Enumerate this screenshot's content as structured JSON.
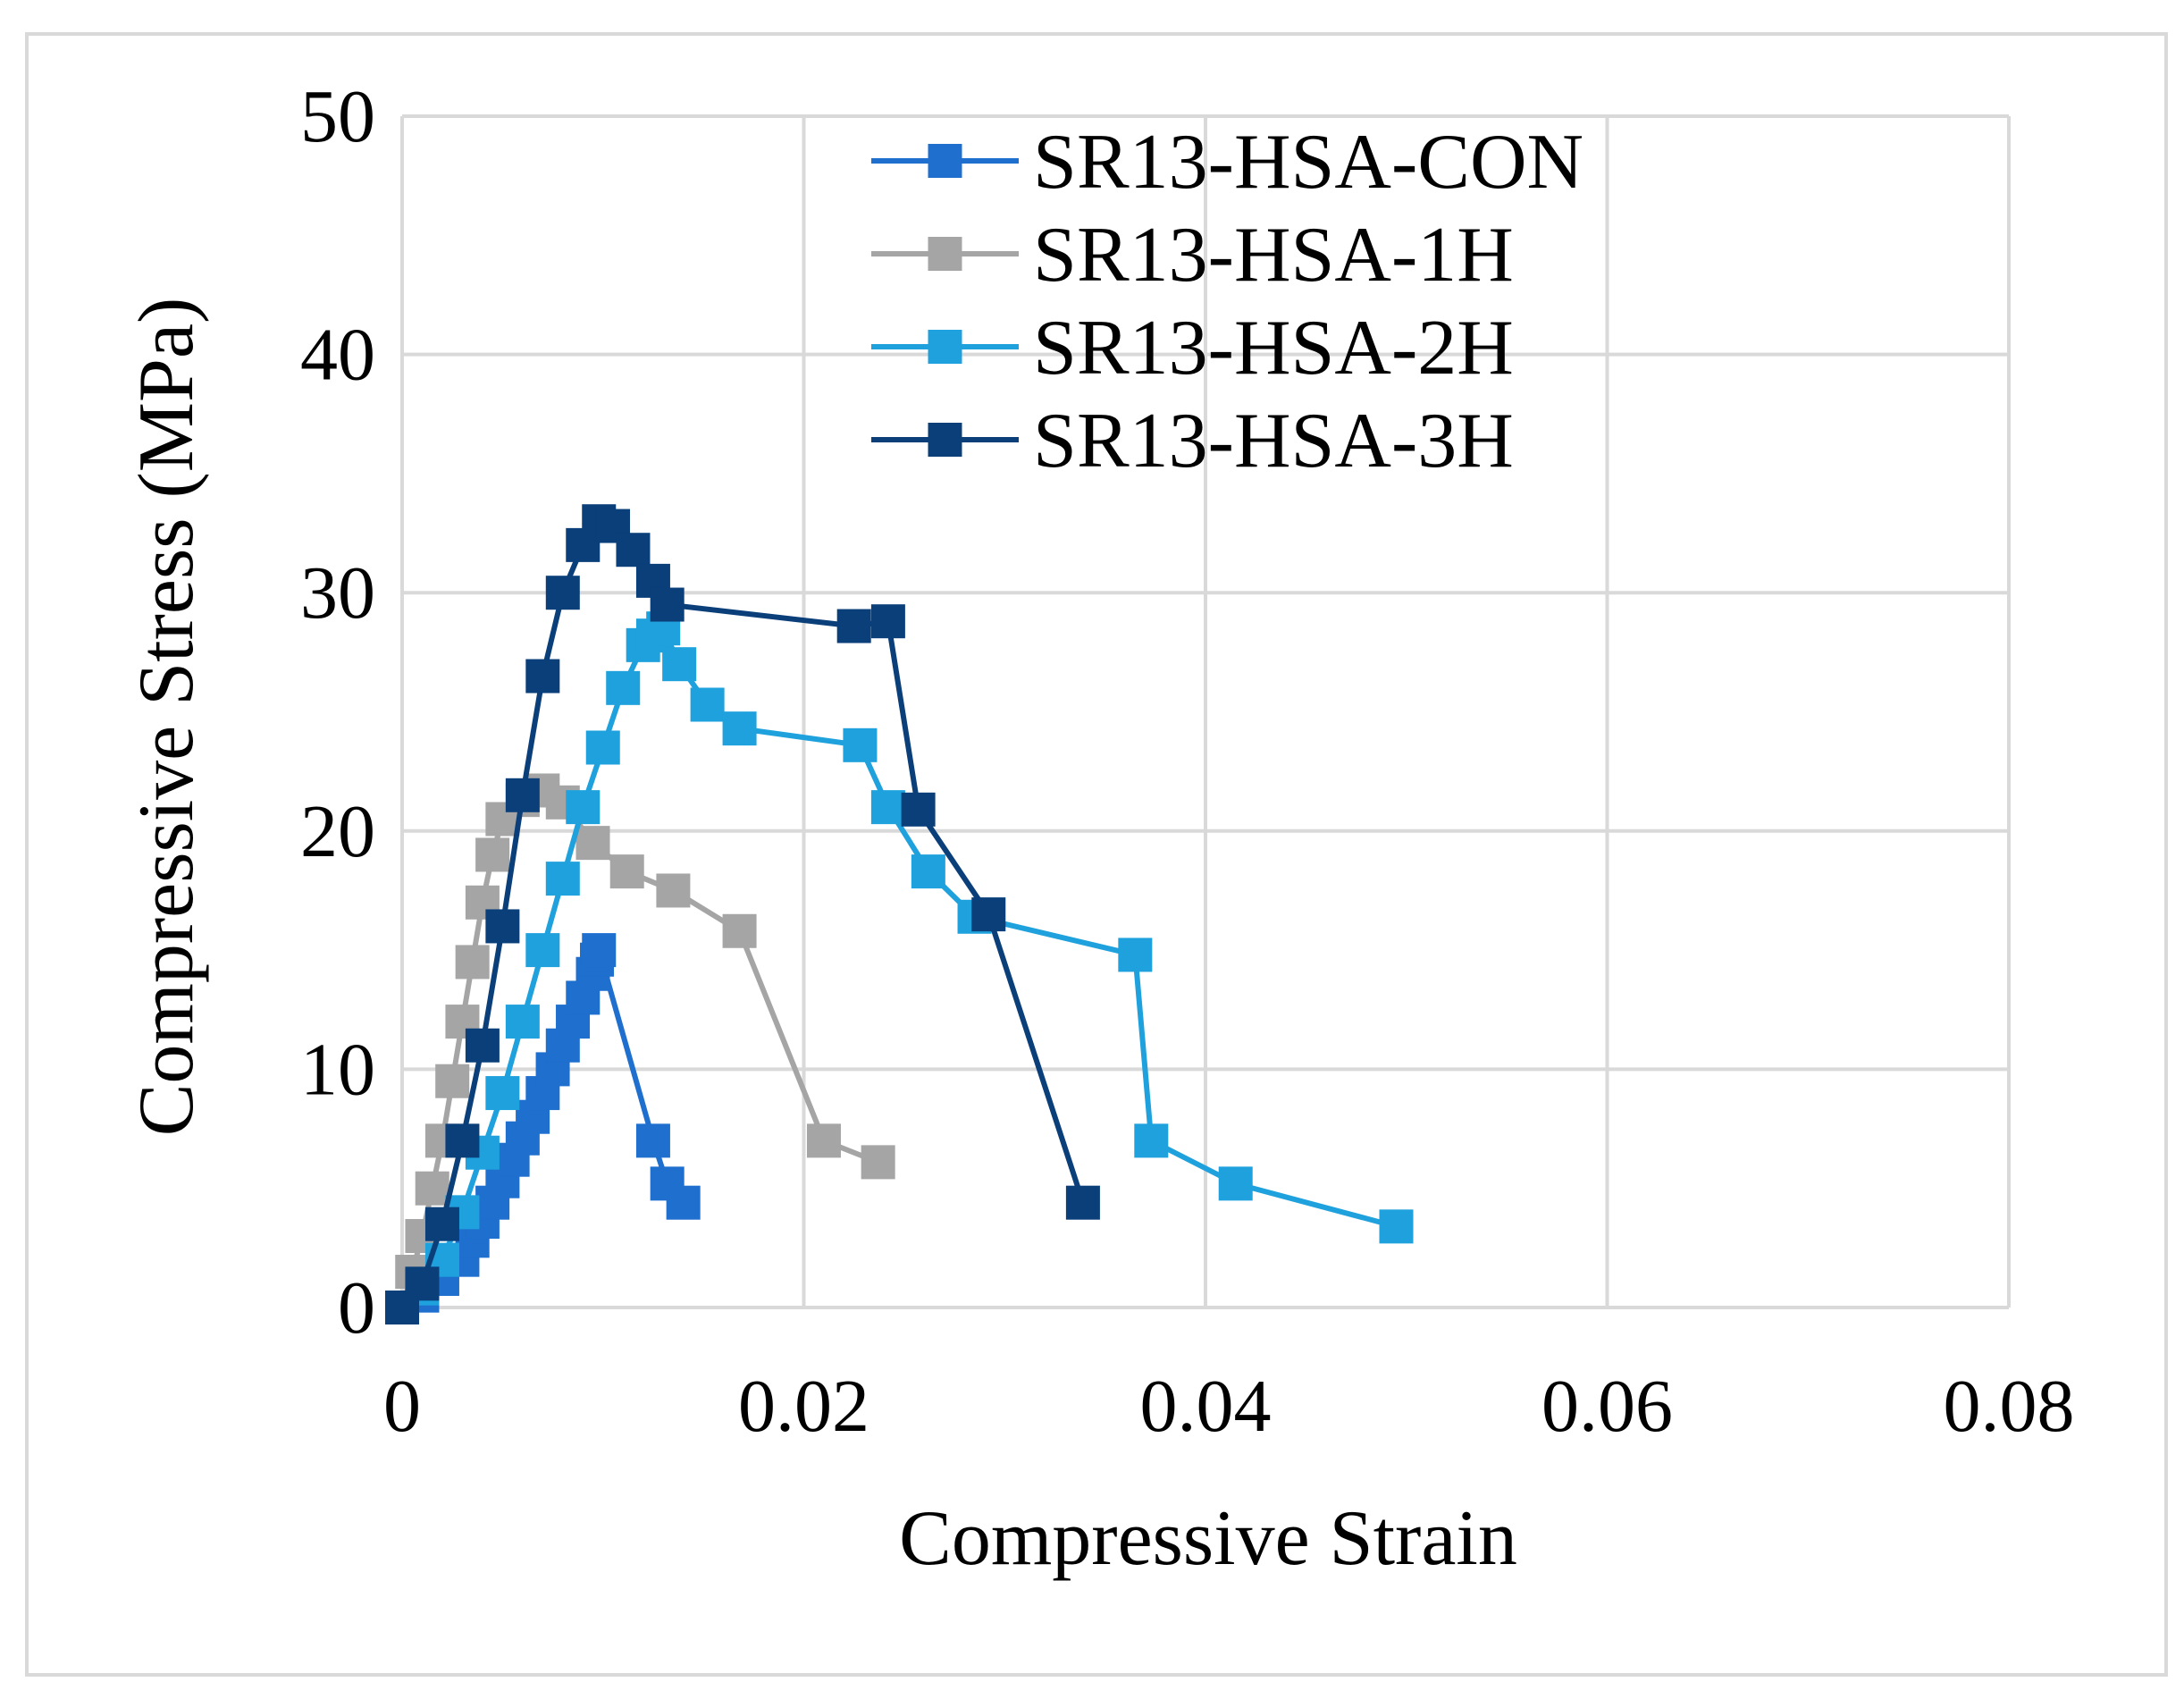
{
  "chart_data": {
    "type": "line",
    "title": "",
    "xlabel": "Compressive Strain",
    "ylabel": "Compressive Stress (MPa)",
    "xlim": [
      0,
      0.08
    ],
    "ylim": [
      0,
      50
    ],
    "x_ticks": [
      0,
      0.02,
      0.04,
      0.06,
      0.08
    ],
    "x_tick_labels": [
      "0",
      "0.02",
      "0.04",
      "0.06",
      "0.08"
    ],
    "y_ticks": [
      0,
      10,
      20,
      30,
      40,
      50
    ],
    "y_tick_labels": [
      "0",
      "10",
      "20",
      "30",
      "40",
      "50"
    ],
    "grid": true,
    "legend_position": "top-right",
    "series": [
      {
        "name": "SR13-HSA-CON",
        "color": "#1f6fcf",
        "marker": "square",
        "points": [
          [
            0,
            0
          ],
          [
            0.001,
            0.5
          ],
          [
            0.002,
            1.2
          ],
          [
            0.003,
            2.0
          ],
          [
            0.0035,
            2.8
          ],
          [
            0.004,
            3.6
          ],
          [
            0.0045,
            4.4
          ],
          [
            0.005,
            5.3
          ],
          [
            0.0055,
            6.2
          ],
          [
            0.006,
            7.1
          ],
          [
            0.0065,
            8.0
          ],
          [
            0.007,
            9.0
          ],
          [
            0.0075,
            10.0
          ],
          [
            0.008,
            11.0
          ],
          [
            0.0085,
            12.0
          ],
          [
            0.009,
            13.0
          ],
          [
            0.0095,
            14.0
          ],
          [
            0.0097,
            14.6
          ],
          [
            0.0098,
            15.0
          ],
          [
            0.0125,
            7.0
          ],
          [
            0.0132,
            5.2
          ],
          [
            0.014,
            4.4
          ]
        ]
      },
      {
        "name": "SR13-HSA-1H",
        "color": "#a5a5a5",
        "marker": "square",
        "points": [
          [
            0,
            0
          ],
          [
            0.0005,
            1.5
          ],
          [
            0.001,
            3.0
          ],
          [
            0.0015,
            5.0
          ],
          [
            0.002,
            7.0
          ],
          [
            0.0025,
            9.5
          ],
          [
            0.003,
            12.0
          ],
          [
            0.0035,
            14.5
          ],
          [
            0.004,
            17.0
          ],
          [
            0.0045,
            19.0
          ],
          [
            0.005,
            20.5
          ],
          [
            0.006,
            21.3
          ],
          [
            0.007,
            21.7
          ],
          [
            0.008,
            21.2
          ],
          [
            0.0095,
            19.5
          ],
          [
            0.0112,
            18.3
          ],
          [
            0.0135,
            17.5
          ],
          [
            0.0168,
            15.8
          ],
          [
            0.021,
            7.0
          ],
          [
            0.0237,
            6.1
          ]
        ]
      },
      {
        "name": "SR13-HSA-2H",
        "color": "#1ea1dc",
        "marker": "square",
        "points": [
          [
            0,
            0
          ],
          [
            0.001,
            0.8
          ],
          [
            0.002,
            2.0
          ],
          [
            0.003,
            4.0
          ],
          [
            0.004,
            6.5
          ],
          [
            0.005,
            9.0
          ],
          [
            0.006,
            12.0
          ],
          [
            0.007,
            15.0
          ],
          [
            0.008,
            18.0
          ],
          [
            0.009,
            21.0
          ],
          [
            0.01,
            23.5
          ],
          [
            0.011,
            26.0
          ],
          [
            0.012,
            27.8
          ],
          [
            0.0125,
            28.2
          ],
          [
            0.013,
            28.5
          ],
          [
            0.0138,
            27.0
          ],
          [
            0.0152,
            25.3
          ],
          [
            0.0168,
            24.3
          ],
          [
            0.0228,
            23.6
          ],
          [
            0.0242,
            21.0
          ],
          [
            0.0262,
            18.3
          ],
          [
            0.0285,
            16.4
          ],
          [
            0.0365,
            14.8
          ],
          [
            0.0373,
            7.0
          ],
          [
            0.0415,
            5.2
          ],
          [
            0.0495,
            3.4
          ]
        ]
      },
      {
        "name": "SR13-HSA-3H",
        "color": "#0b3f7a",
        "marker": "square",
        "points": [
          [
            0,
            0
          ],
          [
            0.001,
            1.0
          ],
          [
            0.002,
            3.5
          ],
          [
            0.003,
            7.0
          ],
          [
            0.004,
            11.0
          ],
          [
            0.005,
            16.0
          ],
          [
            0.006,
            21.5
          ],
          [
            0.007,
            26.5
          ],
          [
            0.008,
            30.0
          ],
          [
            0.009,
            32.0
          ],
          [
            0.0098,
            33.0
          ],
          [
            0.0105,
            32.8
          ],
          [
            0.0115,
            31.8
          ],
          [
            0.0125,
            30.5
          ],
          [
            0.0132,
            29.5
          ],
          [
            0.0225,
            28.6
          ],
          [
            0.0242,
            28.8
          ],
          [
            0.0257,
            20.9
          ],
          [
            0.0292,
            16.5
          ],
          [
            0.0339,
            4.4
          ]
        ]
      }
    ]
  }
}
